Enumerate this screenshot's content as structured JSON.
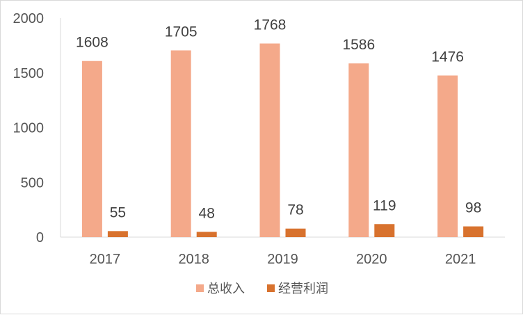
{
  "chart_data": {
    "type": "bar",
    "categories": [
      "2017",
      "2018",
      "2019",
      "2020",
      "2021"
    ],
    "series": [
      {
        "name": "总收入",
        "color": "#F4A98A",
        "values": [
          1608,
          1705,
          1768,
          1586,
          1476
        ]
      },
      {
        "name": "经营利润",
        "color": "#D8722E",
        "values": [
          55,
          48,
          78,
          119,
          98
        ]
      }
    ],
    "yticks": [
      "0",
      "500",
      "1000",
      "1500",
      "2000"
    ],
    "ylim": [
      0,
      2000
    ],
    "grid": false,
    "legend_position": "bottom",
    "title": "",
    "xlabel": "",
    "ylabel": ""
  }
}
